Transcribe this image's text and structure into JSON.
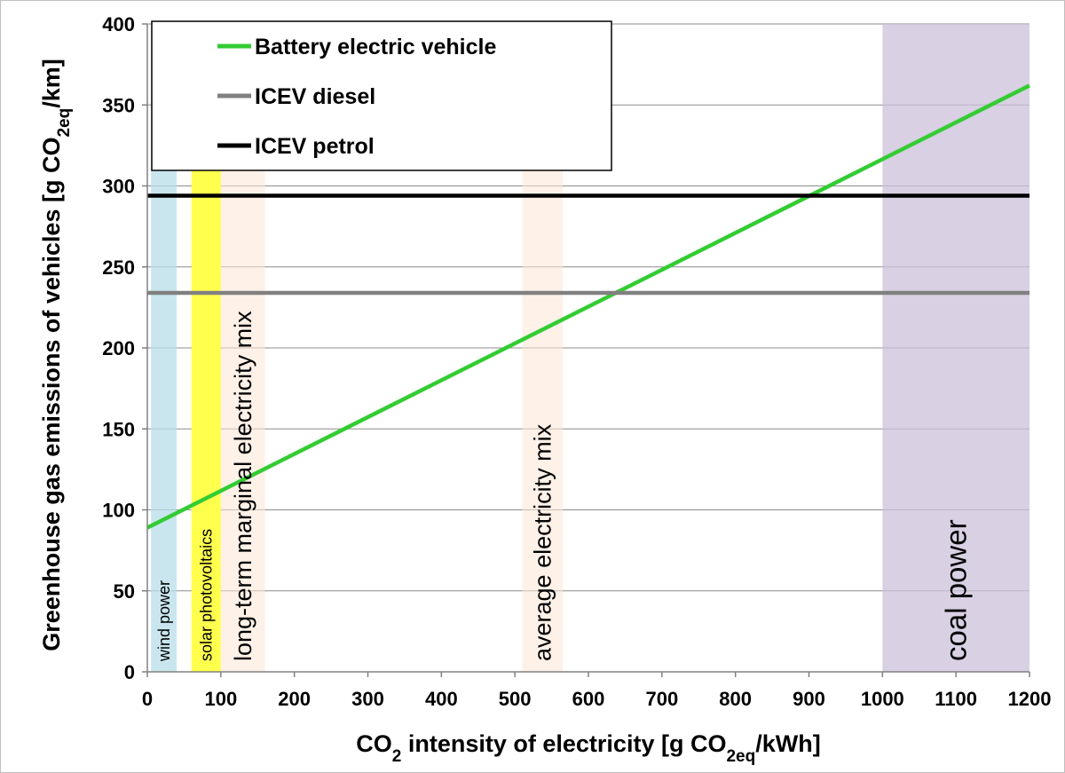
{
  "chart_data": {
    "type": "line",
    "x_axis": {
      "label_parts": [
        "CO",
        "2",
        " intensity of electricity  [g CO",
        "2eq",
        "/kWh]"
      ],
      "range": [
        0,
        1200
      ],
      "ticks": [
        0,
        100,
        200,
        300,
        400,
        500,
        600,
        700,
        800,
        900,
        1000,
        1100,
        1200
      ]
    },
    "y_axis": {
      "label_parts": [
        "Greenhouse gas emissions of vehicles [g CO",
        "2eq",
        "/km]"
      ],
      "range": [
        0,
        400
      ],
      "ticks": [
        0,
        50,
        100,
        150,
        200,
        250,
        300,
        350,
        400
      ]
    },
    "grid": {
      "horizontal": true,
      "vertical": false
    },
    "legend_position": "top-left",
    "series": [
      {
        "name": "Battery electric vehicle",
        "color": "#33cc33",
        "x": [
          0,
          1200
        ],
        "y": [
          89,
          362
        ]
      },
      {
        "name": "ICEV diesel",
        "color": "#808080",
        "x": [
          0,
          1200
        ],
        "y": [
          234,
          234
        ]
      },
      {
        "name": "ICEV petrol",
        "color": "#000000",
        "x": [
          0,
          1200
        ],
        "y": [
          294,
          294
        ]
      }
    ],
    "bands": [
      {
        "label": "wind power",
        "x0": 5,
        "x1": 40,
        "color": "#b7dde8",
        "opacity": 0.75,
        "label_size": "small"
      },
      {
        "label": "solar photovoltaics",
        "x0": 60,
        "x1": 100,
        "color": "#ffff4d",
        "opacity": 1,
        "label_size": "small"
      },
      {
        "label": "long-term marginal electricity mix",
        "x0": 100,
        "x1": 160,
        "color": "#fbe5d6",
        "opacity": 0.55,
        "label_size": "large"
      },
      {
        "label": "average electricity mix",
        "x0": 510,
        "x1": 565,
        "color": "#fbe5d6",
        "opacity": 0.55,
        "label_size": "large"
      },
      {
        "label": "coal power",
        "x0": 1000,
        "x1": 1200,
        "color": "#ccc0da",
        "opacity": 0.75,
        "label_size": "xlarge"
      }
    ]
  }
}
